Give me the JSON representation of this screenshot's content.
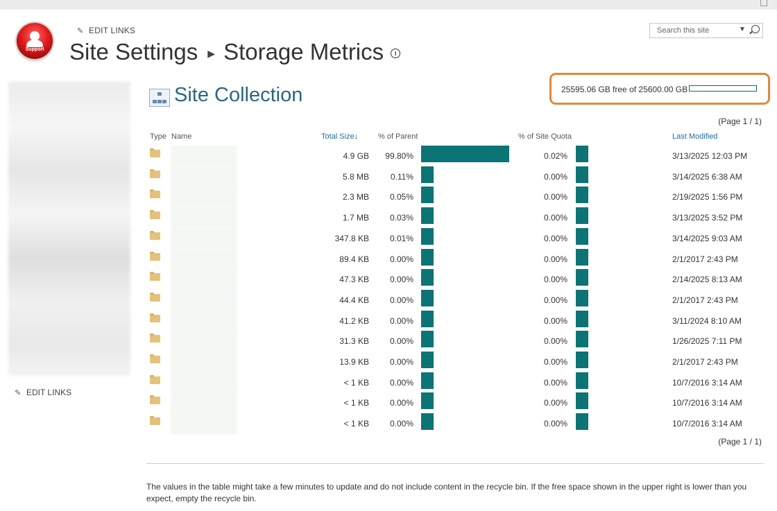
{
  "header": {
    "edit_links": "EDIT LINKS",
    "breadcrumb_root": "Site Settings",
    "breadcrumb_current": "Storage Metrics",
    "logo_text": "Support",
    "search_placeholder": "Search this site"
  },
  "nav": {
    "edit_links": "EDIT LINKS"
  },
  "section_title": "Site Collection",
  "quota": {
    "text": "25595.06 GB free of 25600.00 GB",
    "fraction_used": 0.0002
  },
  "paging": "(Page 1 / 1)",
  "table": {
    "columns": {
      "type": "Type",
      "name": "Name",
      "total_size": "Total Size",
      "pct_parent": "% of Parent",
      "pct_quota": "% of Site Quota",
      "last_modified": "Last Modified"
    },
    "rows": [
      {
        "size": "4.9 GB",
        "pct_parent": "99.80%",
        "pct_quota": "0.02%",
        "modified": "3/13/2025 12:03 PM",
        "parent_fraction": 0.998,
        "quota_fraction": 0.0002
      },
      {
        "size": "5.8 MB",
        "pct_parent": "0.11%",
        "pct_quota": "0.00%",
        "modified": "3/14/2025 6:38 AM",
        "parent_fraction": 0.0011,
        "quota_fraction": 0
      },
      {
        "size": "2.3 MB",
        "pct_parent": "0.05%",
        "pct_quota": "0.00%",
        "modified": "2/19/2025 1:56 PM",
        "parent_fraction": 0.0005,
        "quota_fraction": 0
      },
      {
        "size": "1.7 MB",
        "pct_parent": "0.03%",
        "pct_quota": "0.00%",
        "modified": "3/13/2025 3:52 PM",
        "parent_fraction": 0.0003,
        "quota_fraction": 0
      },
      {
        "size": "347.8 KB",
        "pct_parent": "0.01%",
        "pct_quota": "0.00%",
        "modified": "3/14/2025 9:03 AM",
        "parent_fraction": 0.0001,
        "quota_fraction": 0
      },
      {
        "size": "89.4 KB",
        "pct_parent": "0.00%",
        "pct_quota": "0.00%",
        "modified": "2/1/2017 2:43 PM",
        "parent_fraction": 0,
        "quota_fraction": 0
      },
      {
        "size": "47.3 KB",
        "pct_parent": "0.00%",
        "pct_quota": "0.00%",
        "modified": "2/14/2025 8:13 AM",
        "parent_fraction": 0,
        "quota_fraction": 0
      },
      {
        "size": "44.4 KB",
        "pct_parent": "0.00%",
        "pct_quota": "0.00%",
        "modified": "2/1/2017 2:43 PM",
        "parent_fraction": 0,
        "quota_fraction": 0
      },
      {
        "size": "41.2 KB",
        "pct_parent": "0.00%",
        "pct_quota": "0.00%",
        "modified": "3/11/2024 8:10 AM",
        "parent_fraction": 0,
        "quota_fraction": 0
      },
      {
        "size": "31.3 KB",
        "pct_parent": "0.00%",
        "pct_quota": "0.00%",
        "modified": "1/26/2025 7:11 PM",
        "parent_fraction": 0,
        "quota_fraction": 0
      },
      {
        "size": "13.9 KB",
        "pct_parent": "0.00%",
        "pct_quota": "0.00%",
        "modified": "2/1/2017 2:43 PM",
        "parent_fraction": 0,
        "quota_fraction": 0
      },
      {
        "size": "< 1 KB",
        "pct_parent": "0.00%",
        "pct_quota": "0.00%",
        "modified": "10/7/2016 3:14 AM",
        "parent_fraction": 0,
        "quota_fraction": 0
      },
      {
        "size": "< 1 KB",
        "pct_parent": "0.00%",
        "pct_quota": "0.00%",
        "modified": "10/7/2016 3:14 AM",
        "parent_fraction": 0,
        "quota_fraction": 0
      },
      {
        "size": "< 1 KB",
        "pct_parent": "0.00%",
        "pct_quota": "0.00%",
        "modified": "10/7/2016 3:14 AM",
        "parent_fraction": 0,
        "quota_fraction": 0
      }
    ]
  },
  "footer": "The values in the table might take a few minutes to update and do not include content in the recycle bin. If the free space shown in the upper right is lower than you expect, empty the recycle bin.",
  "colors": {
    "bar": "#0c7474",
    "highlight_border": "#e1893a",
    "title": "#2b6680",
    "link": "#1e6aa8"
  },
  "icons": [
    "pencil-icon",
    "info-icon",
    "search-icon",
    "dropdown-icon",
    "site-collection-icon",
    "folder-icon",
    "sort-down-icon",
    "logo"
  ]
}
